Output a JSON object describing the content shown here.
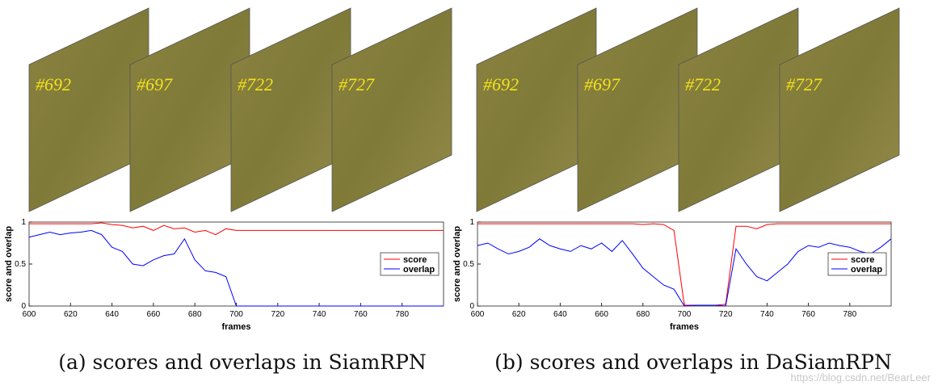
{
  "frames": [
    [
      "#692",
      "#697",
      "#722",
      "#727"
    ],
    [
      "#692",
      "#697",
      "#722",
      "#727"
    ]
  ],
  "captions": [
    "(a) scores and overlaps in SiamRPN",
    "(b) scores and overlaps in DaSiamRPN"
  ],
  "watermark": "https://blog.csdn.net/BearLeer",
  "chart_data": [
    {
      "type": "line",
      "xlabel": "frames",
      "ylabel": "score and overlap",
      "x": [
        600,
        605,
        610,
        615,
        620,
        625,
        630,
        635,
        640,
        645,
        650,
        655,
        660,
        665,
        670,
        675,
        680,
        685,
        690,
        695,
        700,
        705,
        710,
        715,
        720,
        725,
        730,
        735,
        740,
        745,
        750,
        755,
        760,
        765,
        770,
        775,
        780,
        785,
        790,
        795,
        800
      ],
      "series": [
        {
          "name": "score",
          "color": "#ff0000",
          "values": [
            0.98,
            0.98,
            0.98,
            0.98,
            0.98,
            0.98,
            0.98,
            0.99,
            0.97,
            0.96,
            0.93,
            0.95,
            0.9,
            0.96,
            0.92,
            0.93,
            0.88,
            0.9,
            0.85,
            0.92,
            0.9,
            0.9,
            0.9,
            0.9,
            0.9,
            0.9,
            0.9,
            0.9,
            0.9,
            0.9,
            0.9,
            0.9,
            0.9,
            0.9,
            0.9,
            0.9,
            0.9,
            0.9,
            0.9,
            0.9,
            0.9
          ]
        },
        {
          "name": "overlap",
          "color": "#0000ff",
          "values": [
            0.82,
            0.85,
            0.88,
            0.85,
            0.87,
            0.88,
            0.9,
            0.85,
            0.7,
            0.65,
            0.5,
            0.48,
            0.55,
            0.6,
            0.62,
            0.8,
            0.55,
            0.42,
            0.4,
            0.35,
            0,
            0,
            0,
            0,
            0,
            0,
            0,
            0,
            0,
            0,
            0,
            0,
            0,
            0,
            0,
            0,
            0,
            0,
            0,
            0,
            0
          ]
        }
      ],
      "xlim": [
        600,
        800
      ],
      "xticks": [
        600,
        620,
        640,
        660,
        680,
        700,
        720,
        740,
        760,
        780
      ],
      "ylim": [
        0,
        1
      ],
      "yticks": [
        0,
        0.5,
        1
      ],
      "legend": "right"
    },
    {
      "type": "line",
      "xlabel": "frames",
      "ylabel": "score and overlap",
      "x": [
        600,
        605,
        610,
        615,
        620,
        625,
        630,
        635,
        640,
        645,
        650,
        655,
        660,
        665,
        670,
        675,
        680,
        685,
        690,
        695,
        700,
        705,
        710,
        715,
        720,
        725,
        730,
        735,
        740,
        745,
        750,
        755,
        760,
        765,
        770,
        775,
        780,
        785,
        790,
        795,
        800
      ],
      "series": [
        {
          "name": "score",
          "color": "#ff0000",
          "values": [
            0.98,
            0.98,
            0.98,
            0.98,
            0.98,
            0.98,
            0.98,
            0.98,
            0.98,
            0.98,
            0.98,
            0.98,
            0.98,
            0.98,
            0.98,
            0.98,
            0.97,
            0.98,
            0.97,
            0.9,
            0.01,
            0.01,
            0.01,
            0.01,
            0.02,
            0.95,
            0.95,
            0.92,
            0.97,
            0.98,
            0.98,
            0.98,
            0.98,
            0.98,
            0.98,
            0.98,
            0.98,
            0.98,
            0.98,
            0.98,
            0.98
          ]
        },
        {
          "name": "overlap",
          "color": "#0000ff",
          "values": [
            0.72,
            0.75,
            0.68,
            0.62,
            0.65,
            0.7,
            0.8,
            0.72,
            0.68,
            0.65,
            0.72,
            0.68,
            0.75,
            0.65,
            0.78,
            0.62,
            0.45,
            0.35,
            0.25,
            0.2,
            0,
            0.01,
            0.01,
            0.01,
            0,
            0.68,
            0.5,
            0.35,
            0.3,
            0.4,
            0.5,
            0.65,
            0.72,
            0.7,
            0.75,
            0.72,
            0.7,
            0.65,
            0.62,
            0.7,
            0.8
          ]
        }
      ],
      "xlim": [
        600,
        800
      ],
      "xticks": [
        600,
        620,
        640,
        660,
        680,
        700,
        720,
        740,
        760,
        780
      ],
      "ylim": [
        0,
        1
      ],
      "yticks": [
        0,
        0.5,
        1
      ],
      "legend": "right"
    }
  ]
}
